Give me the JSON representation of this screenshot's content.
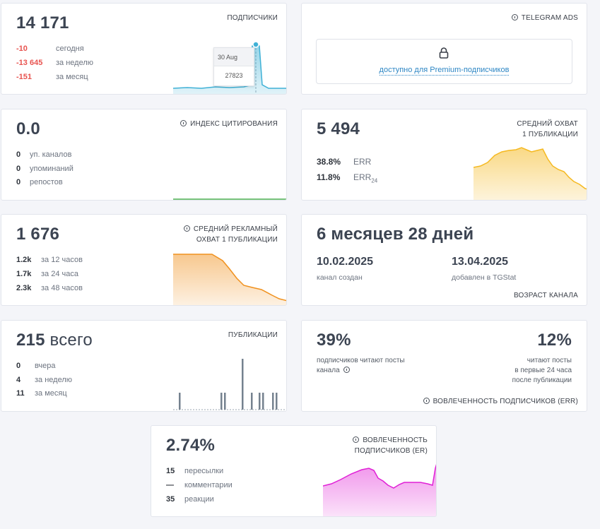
{
  "subscribers": {
    "value": "14 171",
    "title": "ПОДПИСЧИКИ",
    "stats": [
      {
        "value": "-10",
        "label": "сегодня"
      },
      {
        "value": "-13 645",
        "label": "за неделю"
      },
      {
        "value": "-151",
        "label": "за месяц"
      }
    ],
    "tooltip": {
      "date": "30 Aug",
      "value": "27823"
    },
    "color": "#3fb1d6"
  },
  "ads": {
    "title": "TELEGRAM ADS",
    "premium_link": "доступно для Premium-подписчиков",
    "lock_icon": "lock-icon"
  },
  "citation": {
    "value": "0.0",
    "title": "ИНДЕКС ЦИТИРОВАНИЯ",
    "stats": [
      {
        "value": "0",
        "label": "уп. каналов"
      },
      {
        "value": "0",
        "label": "упоминаний"
      },
      {
        "value": "0",
        "label": "репостов"
      }
    ],
    "color": "#4caf50"
  },
  "reach": {
    "value": "5 494",
    "title_line1": "СРЕДНИЙ ОХВАТ",
    "title_line2": "1 ПУБЛИКАЦИИ",
    "err": {
      "value": "38.8%",
      "label": "ERR"
    },
    "err24": {
      "value": "11.8%",
      "label": "ERR",
      "sub": "24"
    },
    "color": "#f5b921"
  },
  "ad_reach": {
    "value": "1 676",
    "title_line1": "СРЕДНИЙ РЕКЛАМНЫЙ",
    "title_line2": "ОХВАТ 1 ПУБЛИКАЦИИ",
    "stats": [
      {
        "value": "1.2k",
        "label": "за 12 часов"
      },
      {
        "value": "1.7k",
        "label": "за 24 часа"
      },
      {
        "value": "2.3k",
        "label": "за 48 часов"
      }
    ],
    "color": "#f0911e"
  },
  "age": {
    "value": "6 месяцев 28 дней",
    "created_date": "10.02.2025",
    "created_label": "канал создан",
    "added_date": "13.04.2025",
    "added_label": "добавлен в TGStat",
    "title": "ВОЗРАСТ КАНАЛА"
  },
  "posts": {
    "value": "215",
    "value_suffix": "всего",
    "title": "ПУБЛИКАЦИИ",
    "stats": [
      {
        "value": "0",
        "label": "вчера"
      },
      {
        "value": "4",
        "label": "за неделю"
      },
      {
        "value": "11",
        "label": "за месяц"
      }
    ],
    "color": "#75828f"
  },
  "err_card": {
    "left_value": "39%",
    "left_text_line1": "подписчиков читают посты",
    "left_text_line2": "канала",
    "right_value": "12%",
    "right_text_line1": "читают посты",
    "right_text_line2": "в первые 24 часа",
    "right_text_line3": "после публикации",
    "title": "ВОВЛЕЧЕННОСТЬ ПОДПИСЧИКОВ (ERR)"
  },
  "er": {
    "value": "2.74%",
    "title_line1": "ВОВЛЕЧЕННОСТЬ",
    "title_line2": "ПОДПИСЧИКОВ (ER)",
    "stats": [
      {
        "value": "15",
        "label": "пересылки"
      },
      {
        "value": "—",
        "label": "комментарии"
      },
      {
        "value": "35",
        "label": "реакции"
      }
    ],
    "color": "#e020d6"
  }
}
